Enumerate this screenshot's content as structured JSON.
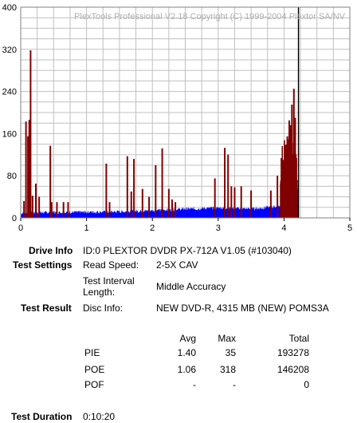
{
  "chart_data": {
    "type": "area",
    "watermark": "PlexTools Professional V2.18 Copyright (C) 1999-2004 Plextor SA/NV",
    "xlim": [
      0,
      5
    ],
    "ylim": [
      0,
      400
    ],
    "x_ticks": [
      "0",
      "1",
      "2",
      "3",
      "4",
      "5"
    ],
    "y_ticks": [
      "0",
      "80",
      "160",
      "240",
      "320",
      "400"
    ],
    "grid": true,
    "test_end_x": 4.22,
    "colors": {
      "pie": "#0000ff",
      "poe": "#800000",
      "grid": "#c0c0c0",
      "end_line": "#000000"
    },
    "series": [
      {
        "values_pie_baseline": [
          [
            0.0,
            8
          ],
          [
            0.5,
            10
          ],
          [
            1.0,
            10
          ],
          [
            1.5,
            11
          ],
          [
            2.0,
            13
          ],
          [
            2.5,
            16
          ],
          [
            3.0,
            18
          ],
          [
            3.5,
            16
          ],
          [
            4.0,
            22
          ],
          [
            4.22,
            28
          ]
        ]
      },
      {
        "values_poe_spikes": [
          [
            0.05,
            32
          ],
          [
            0.08,
            183
          ],
          [
            0.11,
            155
          ],
          [
            0.13,
            186
          ],
          [
            0.15,
            318
          ],
          [
            0.18,
            42
          ],
          [
            0.23,
            65
          ],
          [
            0.28,
            40
          ],
          [
            0.45,
            137
          ],
          [
            0.47,
            30
          ],
          [
            0.55,
            30
          ],
          [
            0.65,
            30
          ],
          [
            0.72,
            30
          ],
          [
            1.3,
            103
          ],
          [
            1.35,
            30
          ],
          [
            1.62,
            117
          ],
          [
            1.68,
            50
          ],
          [
            1.72,
            112
          ],
          [
            1.85,
            55
          ],
          [
            1.95,
            40
          ],
          [
            2.05,
            100
          ],
          [
            2.15,
            132
          ],
          [
            2.25,
            55
          ],
          [
            2.3,
            35
          ],
          [
            2.35,
            30
          ],
          [
            2.95,
            75
          ],
          [
            3.1,
            133
          ],
          [
            3.15,
            120
          ],
          [
            3.2,
            60
          ],
          [
            3.25,
            58
          ],
          [
            3.35,
            60
          ],
          [
            3.5,
            52
          ],
          [
            3.8,
            52
          ],
          [
            3.9,
            80
          ],
          [
            3.95,
            65
          ],
          [
            4.0,
            100
          ],
          [
            4.02,
            138
          ],
          [
            4.05,
            155
          ],
          [
            4.08,
            185
          ],
          [
            4.1,
            176
          ],
          [
            4.12,
            215
          ],
          [
            4.15,
            245
          ],
          [
            4.17,
            190
          ],
          [
            4.2,
            55
          ]
        ]
      }
    ]
  },
  "info": {
    "drive_info_label": "Drive Info",
    "drive_info_value": "ID:0 PLEXTOR DVDR PX-712A V1.05 (#103040)",
    "test_settings_label": "Test Settings",
    "read_speed_label": "Read Speed:",
    "read_speed_value": "2-5X CAV",
    "interval_label_line1": "Test Interval",
    "interval_label_line2": "Length:",
    "interval_value": "Middle Accuracy",
    "test_result_label": "Test Result",
    "disc_info_label": "Disc Info:",
    "disc_info_value": "NEW DVD-R, 4315 MB (NEW) POMS3A"
  },
  "results": {
    "headers": {
      "avg": "Avg",
      "max": "Max",
      "total": "Total"
    },
    "rows": [
      {
        "name": "PIE",
        "avg": "1.40",
        "max": "35",
        "total": "193278"
      },
      {
        "name": "POE",
        "avg": "1.06",
        "max": "318",
        "total": "146208"
      },
      {
        "name": "POF",
        "avg": "-",
        "max": "-",
        "total": "0"
      }
    ]
  },
  "duration": {
    "label": "Test Duration",
    "value": "0:10:20"
  }
}
